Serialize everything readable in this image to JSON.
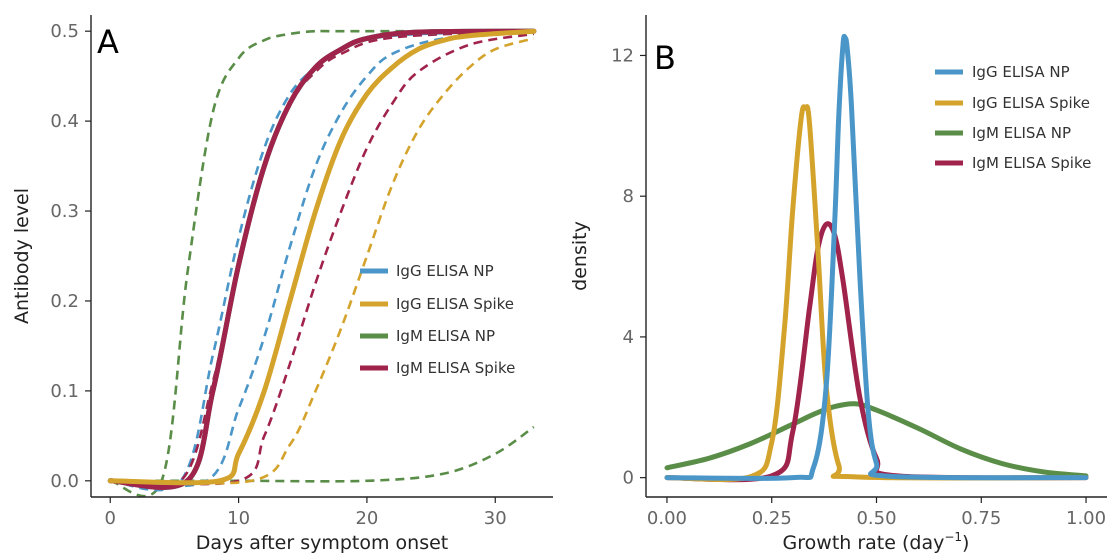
{
  "colors": {
    "IgG ELISA NP": "#4B96C8",
    "IgG ELISA Spike": "#D4A32C",
    "IgM ELISA NP": "#5A8E48",
    "IgM ELISA Spike": "#A0234B"
  },
  "chart_data": [
    {
      "panel": "A",
      "type": "line",
      "xlabel": "Days after symptom onset",
      "ylabel": "Antibody level",
      "xlim": [
        -1.5,
        34.5
      ],
      "ylim": [
        -0.018,
        0.518
      ],
      "xticks": [
        0,
        10,
        20,
        30
      ],
      "yticks": [
        0.0,
        0.1,
        0.2,
        0.3,
        0.4,
        0.5
      ],
      "ytick_labels": [
        "0.0",
        "0.1",
        "0.2",
        "0.3",
        "0.4",
        "0.5"
      ],
      "legend_position": "center-right",
      "legend": [
        "IgG ELISA NP",
        "IgG ELISA Spike",
        "IgM ELISA NP",
        "IgM ELISA Spike"
      ],
      "series": [
        {
          "name": "IgM ELISA NP",
          "style": "dashed",
          "x": [
            0,
            4,
            6,
            8,
            10,
            12,
            14,
            16,
            18,
            33
          ],
          "y": [
            0.0,
            0.0,
            0.23,
            0.41,
            0.47,
            0.49,
            0.497,
            0.5,
            0.5,
            0.5
          ]
        },
        {
          "name": "IgM ELISA NP",
          "style": "dashed",
          "x": [
            0,
            10,
            20,
            26,
            30,
            33
          ],
          "y": [
            0.0,
            0.0,
            0.0,
            0.008,
            0.03,
            0.06
          ]
        },
        {
          "name": "IgG ELISA NP",
          "style": "dashed",
          "x": [
            0,
            5.5,
            8,
            10,
            12,
            14,
            16,
            18,
            22,
            33
          ],
          "y": [
            0.0,
            0.0,
            0.14,
            0.27,
            0.37,
            0.43,
            0.46,
            0.48,
            0.495,
            0.5
          ]
        },
        {
          "name": "IgG ELISA NP",
          "style": "dashed",
          "x": [
            0,
            7.5,
            10,
            12,
            14,
            16,
            18,
            20,
            22,
            26,
            33
          ],
          "y": [
            0.0,
            0.0,
            0.08,
            0.16,
            0.26,
            0.35,
            0.41,
            0.45,
            0.475,
            0.492,
            0.5
          ]
        },
        {
          "name": "IgM ELISA Spike",
          "style": "dashed",
          "x": [
            0,
            5.5,
            8,
            10,
            12,
            14,
            16,
            18,
            22,
            33
          ],
          "y": [
            0.0,
            0.0,
            0.11,
            0.24,
            0.35,
            0.42,
            0.455,
            0.475,
            0.493,
            0.5
          ]
        },
        {
          "name": "IgM ELISA Spike",
          "style": "dashed",
          "x": [
            0,
            10,
            12,
            14,
            16,
            18,
            20,
            22,
            24,
            28,
            33
          ],
          "y": [
            0.0,
            0.0,
            0.05,
            0.13,
            0.22,
            0.3,
            0.37,
            0.42,
            0.455,
            0.485,
            0.497
          ]
        },
        {
          "name": "IgG ELISA Spike",
          "style": "dashed",
          "x": [
            0,
            11,
            14,
            16,
            18,
            20,
            22,
            24,
            26,
            28,
            30,
            33
          ],
          "y": [
            0.0,
            0.0,
            0.04,
            0.1,
            0.17,
            0.25,
            0.33,
            0.39,
            0.43,
            0.46,
            0.48,
            0.492
          ]
        },
        {
          "name": "IgG ELISA NP",
          "style": "solid",
          "x": [
            0,
            6,
            8,
            10,
            12,
            14,
            16,
            18,
            20,
            24,
            33
          ],
          "y": [
            0.0,
            0.0,
            0.1,
            0.24,
            0.35,
            0.42,
            0.46,
            0.48,
            0.492,
            0.499,
            0.5
          ]
        },
        {
          "name": "IgM ELISA NP",
          "style": "solid",
          "x": [
            0,
            6,
            8,
            10,
            12,
            14,
            16,
            18,
            20,
            24,
            33
          ],
          "y": [
            0.0,
            0.0,
            0.1,
            0.24,
            0.35,
            0.42,
            0.46,
            0.48,
            0.492,
            0.499,
            0.5
          ]
        },
        {
          "name": "IgM ELISA Spike",
          "style": "solid",
          "x": [
            0,
            6,
            8,
            10,
            12,
            14,
            16,
            18,
            20,
            24,
            33
          ],
          "y": [
            0.0,
            0.0,
            0.1,
            0.24,
            0.35,
            0.42,
            0.46,
            0.48,
            0.492,
            0.499,
            0.5
          ]
        },
        {
          "name": "IgG ELISA Spike",
          "style": "solid",
          "x": [
            0,
            8.5,
            10,
            12,
            14,
            16,
            18,
            20,
            22,
            24,
            26,
            28,
            33
          ],
          "y": [
            0.0,
            0.0,
            0.03,
            0.1,
            0.2,
            0.3,
            0.38,
            0.43,
            0.46,
            0.48,
            0.49,
            0.495,
            0.5
          ]
        }
      ]
    },
    {
      "panel": "B",
      "type": "line",
      "xlabel": "Growth rate (day",
      "xlabel_superscript": "−1",
      "xlabel_suffix": ")",
      "ylabel": "density",
      "xlim": [
        -0.05,
        1.05
      ],
      "ylim": [
        -0.55,
        13.15
      ],
      "xticks": [
        0.0,
        0.25,
        0.5,
        0.75,
        1.0
      ],
      "xtick_labels": [
        "0.00",
        "0.25",
        "0.50",
        "0.75",
        "1.00"
      ],
      "yticks": [
        0,
        4,
        8,
        12
      ],
      "legend_position": "top-right",
      "legend": [
        "IgG ELISA NP",
        "IgG ELISA Spike",
        "IgM ELISA NP",
        "IgM ELISA Spike"
      ],
      "series": [
        {
          "name": "IgM ELISA NP",
          "x": [
            0.0,
            0.1,
            0.2,
            0.3,
            0.35,
            0.4,
            0.45,
            0.5,
            0.6,
            0.7,
            0.8,
            0.9,
            1.0
          ],
          "y": [
            0.28,
            0.55,
            0.97,
            1.52,
            1.8,
            2.02,
            2.1,
            1.92,
            1.4,
            0.82,
            0.4,
            0.16,
            0.05
          ]
        },
        {
          "name": "IgM ELISA Spike",
          "x": [
            0.0,
            0.25,
            0.3,
            0.34,
            0.36,
            0.38,
            0.4,
            0.42,
            0.46,
            0.5,
            0.55,
            1.0
          ],
          "y": [
            0.0,
            0.05,
            1.3,
            4.8,
            6.5,
            7.2,
            6.9,
            5.6,
            2.3,
            0.55,
            0.05,
            0.0
          ]
        },
        {
          "name": "IgG ELISA Spike",
          "x": [
            0.0,
            0.2,
            0.25,
            0.28,
            0.3,
            0.32,
            0.33,
            0.34,
            0.36,
            0.38,
            0.41,
            0.45,
            1.0
          ],
          "y": [
            0.0,
            0.03,
            1.0,
            4.2,
            7.6,
            10.2,
            10.5,
            10.1,
            6.5,
            2.6,
            0.35,
            0.02,
            0.0
          ]
        },
        {
          "name": "IgG ELISA NP",
          "x": [
            0.0,
            0.3,
            0.35,
            0.38,
            0.4,
            0.41,
            0.42,
            0.425,
            0.43,
            0.44,
            0.46,
            0.48,
            0.5,
            0.53,
            1.0
          ],
          "y": [
            0.0,
            0.0,
            0.3,
            2.6,
            7.2,
            10.3,
            12.3,
            12.5,
            12.2,
            10.6,
            5.8,
            1.9,
            0.4,
            0.04,
            0.0
          ]
        }
      ]
    }
  ]
}
